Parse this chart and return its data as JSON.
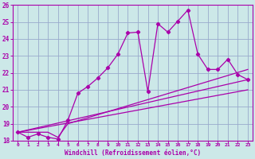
{
  "xlabel": "Windchill (Refroidissement éolien,°C)",
  "background_color": "#cce8e8",
  "line_color": "#aa00aa",
  "grid_color": "#99aacc",
  "xlim": [
    -0.5,
    23.5
  ],
  "ylim": [
    18,
    26
  ],
  "xticks": [
    0,
    1,
    2,
    3,
    4,
    5,
    6,
    7,
    8,
    9,
    10,
    11,
    12,
    13,
    14,
    15,
    16,
    17,
    18,
    19,
    20,
    21,
    22,
    23
  ],
  "yticks": [
    18,
    19,
    20,
    21,
    22,
    23,
    24,
    25,
    26
  ],
  "main_series": [
    [
      0,
      18.5
    ],
    [
      1,
      18.2
    ],
    [
      2,
      18.4
    ],
    [
      3,
      18.2
    ],
    [
      4,
      18.1
    ],
    [
      5,
      19.2
    ],
    [
      6,
      20.8
    ],
    [
      7,
      21.2
    ],
    [
      8,
      21.7
    ],
    [
      9,
      22.3
    ],
    [
      10,
      23.1
    ],
    [
      11,
      24.35
    ],
    [
      12,
      24.4
    ],
    [
      13,
      20.9
    ],
    [
      14,
      24.9
    ],
    [
      15,
      24.4
    ],
    [
      16,
      25.05
    ],
    [
      17,
      25.7
    ],
    [
      18,
      23.1
    ],
    [
      19,
      22.2
    ],
    [
      20,
      22.2
    ],
    [
      21,
      22.8
    ],
    [
      22,
      21.9
    ],
    [
      23,
      21.6
    ]
  ],
  "line2": [
    [
      0,
      18.5
    ],
    [
      3,
      18.5
    ],
    [
      4,
      18.2
    ],
    [
      5,
      19.0
    ],
    [
      23,
      22.2
    ]
  ],
  "line3": [
    [
      0,
      18.5
    ],
    [
      23,
      21.6
    ]
  ],
  "line4": [
    [
      0,
      18.5
    ],
    [
      23,
      21.0
    ]
  ]
}
